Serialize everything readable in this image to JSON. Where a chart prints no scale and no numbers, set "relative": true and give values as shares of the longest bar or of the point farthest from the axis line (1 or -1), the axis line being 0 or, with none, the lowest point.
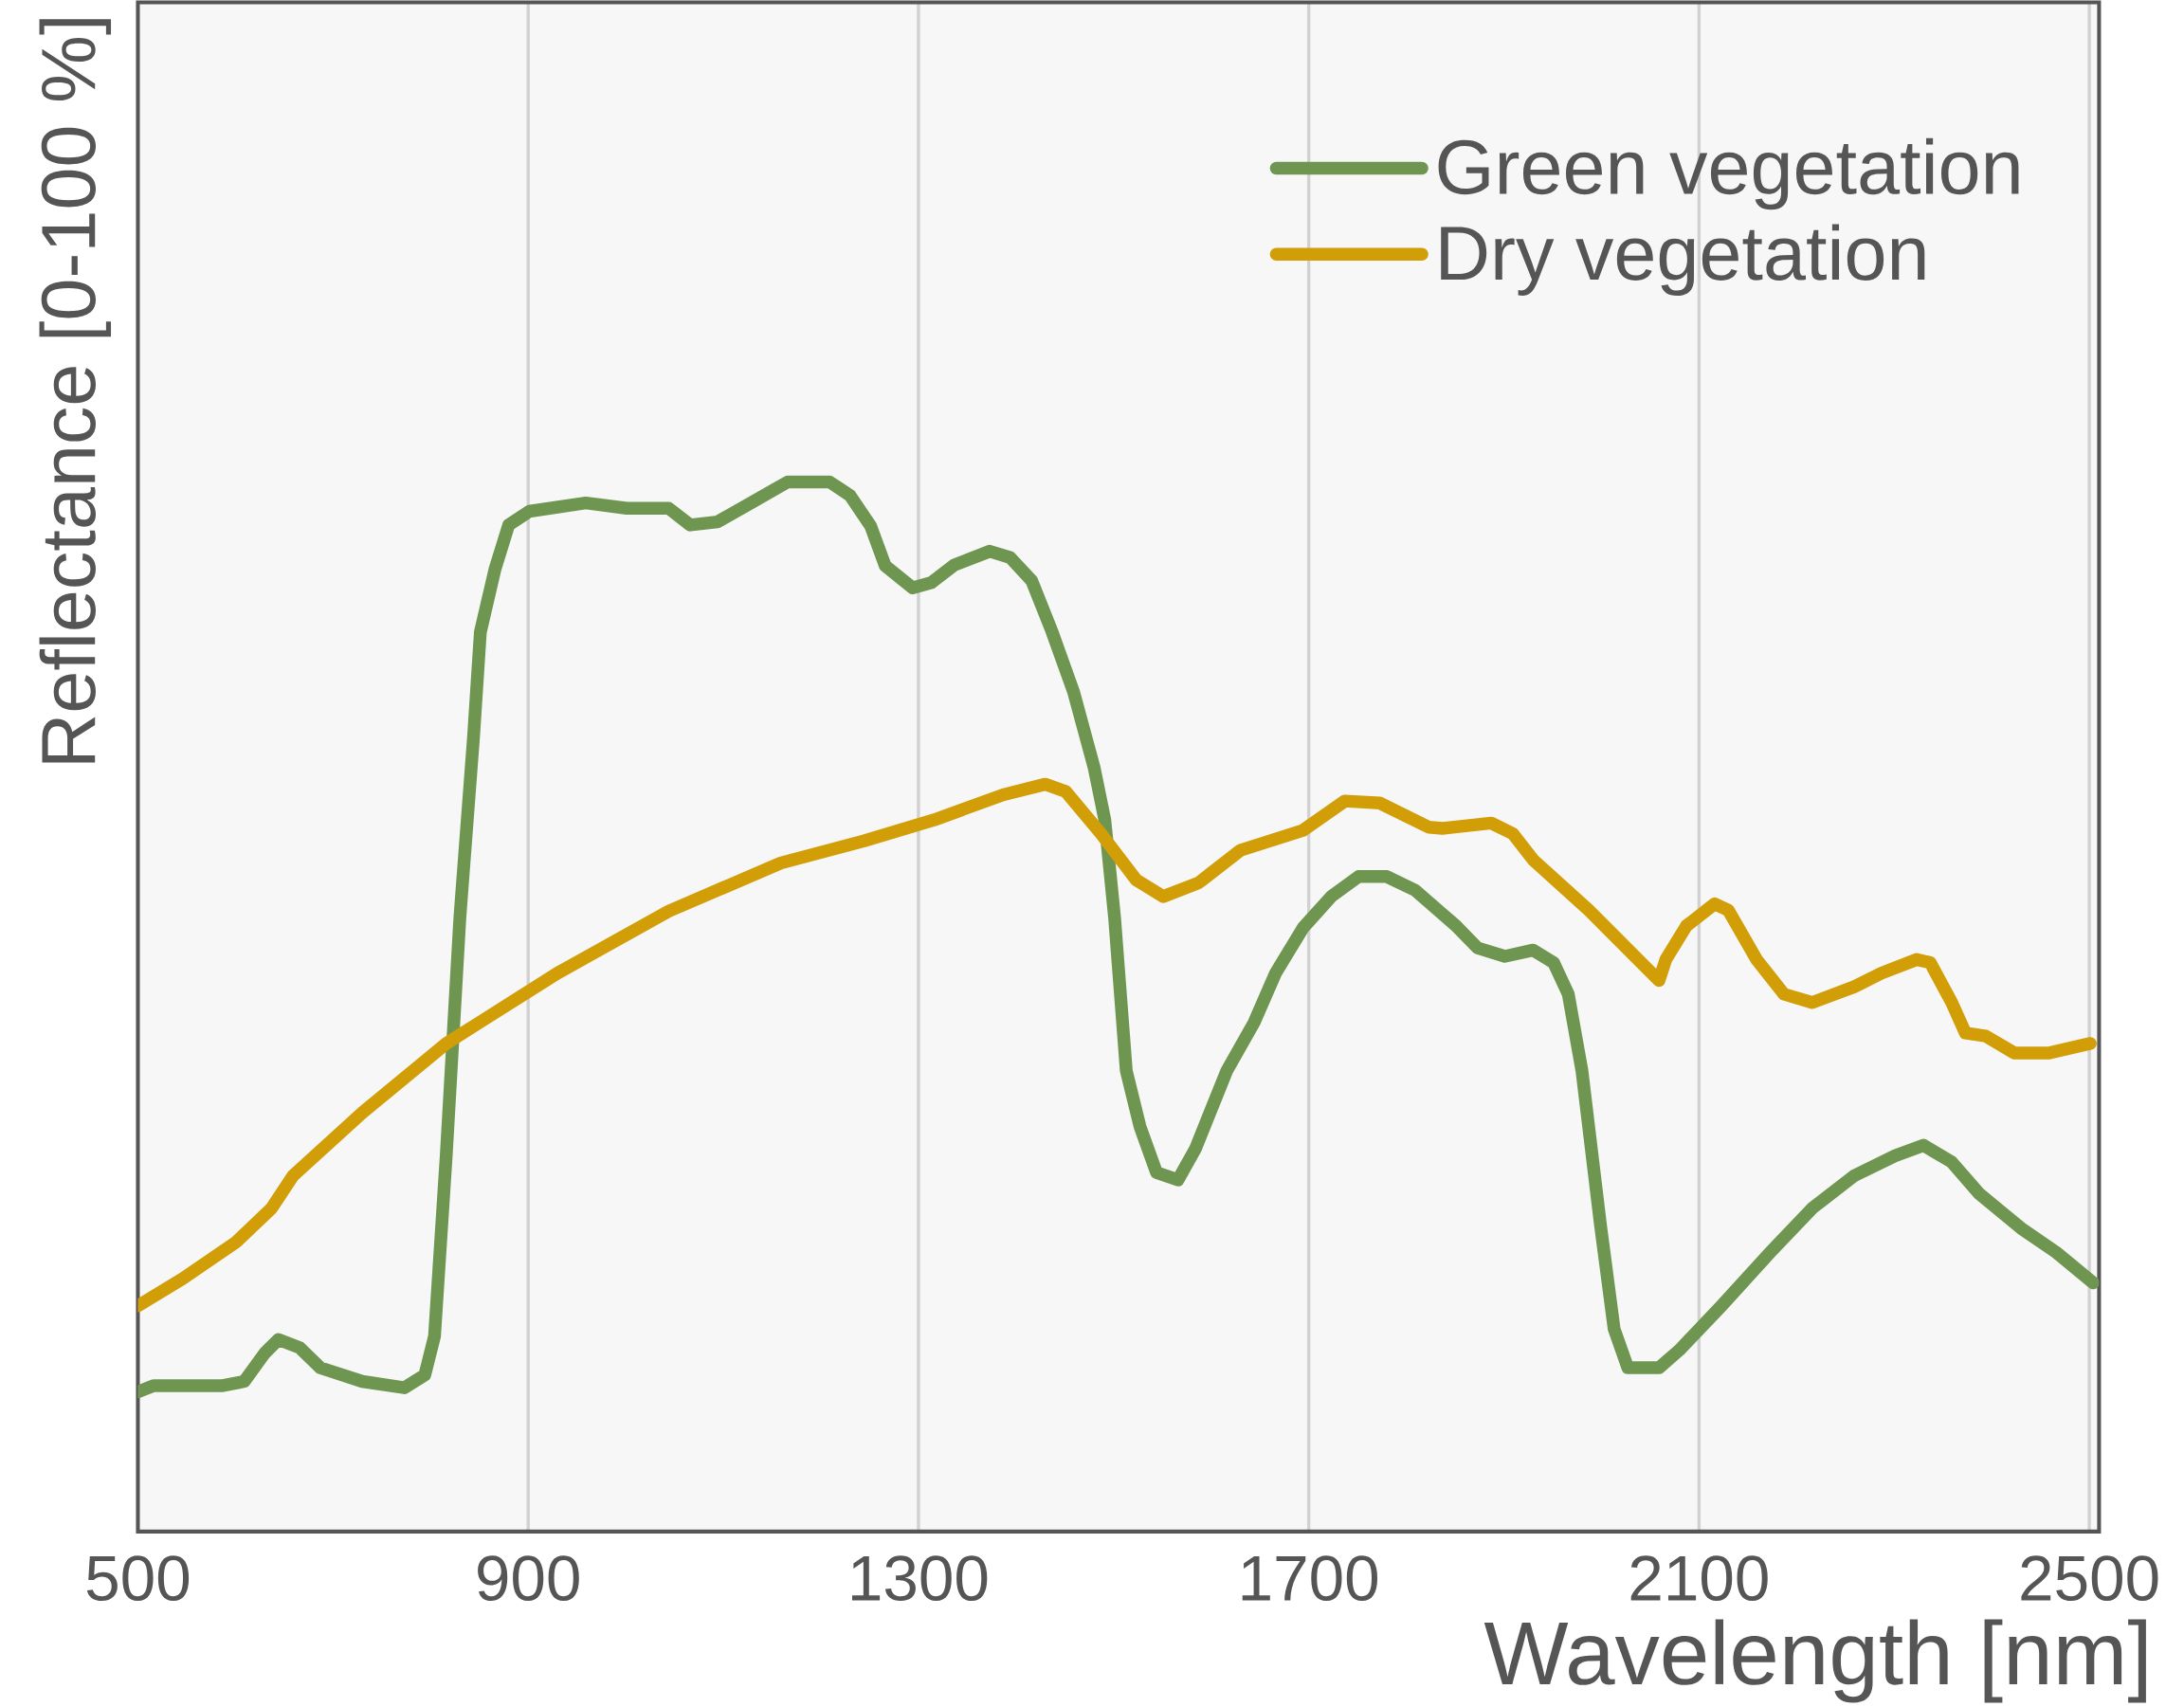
{
  "chart_data": {
    "type": "line",
    "xlabel": "Wavelength [nm]",
    "ylabel": "Reflectance [0-100 %]",
    "xlim": [
      500,
      2510
    ],
    "relative": true,
    "xticks": [
      500,
      900,
      1300,
      1700,
      2100,
      2500
    ],
    "tick_labels": "x",
    "grid": "x",
    "legend": "top right",
    "line_style": "solid",
    "series": [
      {
        "name": "Green vegetation",
        "color": "#6e9650",
        "x": [
          500,
          516,
          587,
          609,
          630,
          644,
          666,
          687,
          730,
          773,
          794,
          804,
          816,
          830,
          844,
          851,
          866,
          880,
          901,
          959,
          1001,
          1044,
          1066,
          1094,
          1130,
          1166,
          1209,
          1230,
          1251,
          1266,
          1294,
          1313,
          1337,
          1373,
          1394,
          1416,
          1437,
          1459,
          1480,
          1491,
          1501,
          1513,
          1527,
          1544,
          1566,
          1584,
          1616,
          1644,
          1666,
          1694,
          1723,
          1751,
          1780,
          1809,
          1851,
          1873,
          1901,
          1930,
          1951,
          1966,
          1980,
          1999,
          2013,
          2027,
          2059,
          2080,
          2123,
          2173,
          2216,
          2259,
          2301,
          2330,
          2359,
          2387,
          2430,
          2466,
          2504
        ],
        "values": [
          0.133,
          0.139,
          0.139,
          0.143,
          0.17,
          0.183,
          0.175,
          0.156,
          0.143,
          0.137,
          0.149,
          0.186,
          0.358,
          0.585,
          0.757,
          0.857,
          0.917,
          0.959,
          0.972,
          0.98,
          0.975,
          0.975,
          0.959,
          0.962,
          0.981,
          1,
          1,
          0.987,
          0.958,
          0.92,
          0.899,
          0.904,
          0.921,
          0.934,
          0.928,
          0.906,
          0.857,
          0.8,
          0.728,
          0.678,
          0.585,
          0.439,
          0.386,
          0.342,
          0.335,
          0.365,
          0.439,
          0.485,
          0.532,
          0.575,
          0.605,
          0.624,
          0.624,
          0.611,
          0.577,
          0.556,
          0.548,
          0.554,
          0.542,
          0.512,
          0.439,
          0.292,
          0.193,
          0.156,
          0.156,
          0.173,
          0.215,
          0.266,
          0.308,
          0.339,
          0.358,
          0.368,
          0.352,
          0.322,
          0.289,
          0.266,
          0.237
        ]
      },
      {
        "name": "Dry vegetation",
        "color": "#d19e08",
        "x": [
          500,
          546,
          601,
          637,
          659,
          730,
          816,
          930,
          1044,
          1159,
          1244,
          1316,
          1387,
          1430,
          1451,
          1487,
          1523,
          1551,
          1587,
          1630,
          1694,
          1737,
          1773,
          1823,
          1837,
          1887,
          1909,
          1930,
          1987,
          2059,
          2066,
          2087,
          2116,
          2130,
          2159,
          2187,
          2216,
          2259,
          2287,
          2323,
          2337,
          2359,
          2373,
          2394,
          2423,
          2459,
          2501
        ],
        "values": [
          0.215,
          0.241,
          0.276,
          0.308,
          0.339,
          0.399,
          0.465,
          0.532,
          0.591,
          0.637,
          0.658,
          0.678,
          0.702,
          0.712,
          0.705,
          0.665,
          0.621,
          0.605,
          0.618,
          0.649,
          0.668,
          0.696,
          0.694,
          0.671,
          0.67,
          0.675,
          0.665,
          0.64,
          0.592,
          0.525,
          0.545,
          0.577,
          0.598,
          0.592,
          0.545,
          0.512,
          0.504,
          0.519,
          0.532,
          0.545,
          0.542,
          0.504,
          0.475,
          0.472,
          0.456,
          0.456,
          0.465
        ]
      }
    ]
  }
}
